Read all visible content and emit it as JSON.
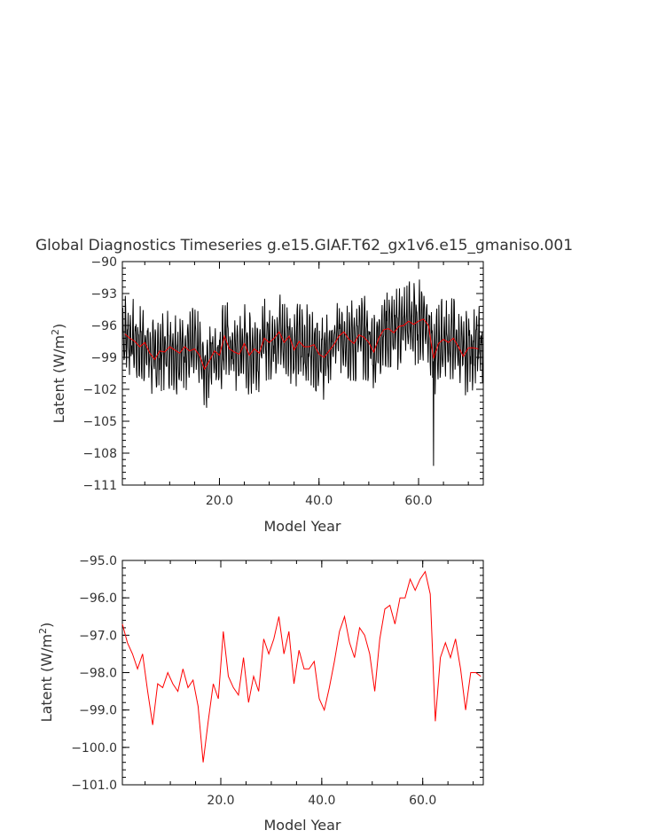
{
  "title": "Global Diagnostics Timeseries g.e15.GIAF.T62_gx1v6.e15_gmaniso.001",
  "colors": {
    "monthly": "#000000",
    "annual": "#ff0000",
    "text": "#333333"
  },
  "chart_data": [
    {
      "type": "line",
      "xlabel": "Model Year",
      "ylabel_main": "Latent (W/m",
      "ylabel_sup": "2",
      "ylabel_close": ")",
      "xlim": [
        0.5,
        73
      ],
      "ylim": [
        -111,
        -90
      ],
      "xticks": [
        20,
        40,
        60
      ],
      "xtick_labels": [
        "20.0",
        "40.0",
        "60.0"
      ],
      "yticks": [
        -111,
        -108,
        -105,
        -102,
        -99,
        -96,
        -93,
        -90
      ],
      "ytick_labels": [
        "−111",
        "−108",
        "−105",
        "−102",
        "−99",
        "−96",
        "−93",
        "−90"
      ],
      "series": [
        {
          "color": "#000000",
          "kind": "monthly",
          "start": 0.5,
          "step": 0.0833333,
          "min_point": {
            "x": 63.0,
            "y": -109.2
          }
        },
        {
          "color": "#ff0000",
          "kind": "annual",
          "x": [
            1,
            2,
            3,
            4,
            5,
            6,
            7,
            8,
            9,
            10,
            11,
            12,
            13,
            14,
            15,
            16,
            17,
            18,
            19,
            20,
            21,
            22,
            23,
            24,
            25,
            26,
            27,
            28,
            29,
            30,
            31,
            32,
            33,
            34,
            35,
            36,
            37,
            38,
            39,
            40,
            41,
            42,
            43,
            44,
            45,
            46,
            47,
            48,
            49,
            50,
            51,
            52,
            53,
            54,
            55,
            56,
            57,
            58,
            59,
            60,
            61,
            62,
            63,
            64,
            65,
            66,
            67,
            68,
            69,
            70,
            71,
            72
          ],
          "y": [
            -96.8,
            -97.2,
            -97.5,
            -98.0,
            -97.6,
            -98.6,
            -99.2,
            -98.4,
            -98.5,
            -98.0,
            -98.3,
            -98.6,
            -98.0,
            -98.4,
            -98.2,
            -98.8,
            -100.1,
            -99.3,
            -98.4,
            -98.8,
            -97.0,
            -98.2,
            -98.5,
            -98.7,
            -97.7,
            -98.8,
            -98.2,
            -98.6,
            -97.2,
            -97.6,
            -97.2,
            -96.6,
            -97.6,
            -97.0,
            -98.3,
            -97.5,
            -98.0,
            -98.0,
            -97.8,
            -98.7,
            -99.0,
            -98.4,
            -97.8,
            -97.0,
            -96.6,
            -97.3,
            -97.7,
            -96.9,
            -97.1,
            -97.6,
            -98.5,
            -97.2,
            -96.4,
            -96.3,
            -96.7,
            -96.1,
            -96.0,
            -95.6,
            -95.9,
            -95.6,
            -95.4,
            -96.0,
            -99.1,
            -97.7,
            -97.3,
            -97.6,
            -97.2,
            -98.0,
            -98.9,
            -98.1,
            -98.1,
            -98.2
          ]
        }
      ]
    },
    {
      "type": "line",
      "xlabel": "Model Year",
      "ylabel_main": "Latent (W/m",
      "ylabel_sup": "2",
      "ylabel_close": ")",
      "xlim": [
        0.5,
        72
      ],
      "ylim": [
        -101,
        -95
      ],
      "xticks": [
        20,
        40,
        60
      ],
      "xtick_labels": [
        "20.0",
        "40.0",
        "60.0"
      ],
      "yticks": [
        -101,
        -100,
        -99,
        -98,
        -97,
        -96,
        -95
      ],
      "ytick_labels": [
        "−101.0",
        "−100.0",
        "−99.0",
        "−98.0",
        "−97.0",
        "−96.0",
        "−95.0"
      ],
      "series": [
        {
          "color": "#ff0000",
          "kind": "annual",
          "x": [
            0.5,
            1.5,
            2.5,
            3.5,
            4.5,
            5.5,
            6.5,
            7.5,
            8.5,
            9.5,
            10.5,
            11.5,
            12.5,
            13.5,
            14.5,
            15.5,
            16.5,
            17.5,
            18.5,
            19.5,
            20.5,
            21.5,
            22.5,
            23.5,
            24.5,
            25.5,
            26.5,
            27.5,
            28.5,
            29.5,
            30.5,
            31.5,
            32.5,
            33.5,
            34.5,
            35.5,
            36.5,
            37.5,
            38.5,
            39.5,
            40.5,
            41.5,
            42.5,
            43.5,
            44.5,
            45.5,
            46.5,
            47.5,
            48.5,
            49.5,
            50.5,
            51.5,
            52.5,
            53.5,
            54.5,
            55.5,
            56.5,
            57.5,
            58.5,
            59.5,
            60.5,
            61.5,
            62.5,
            63.5,
            64.5,
            65.5,
            66.5,
            67.5,
            68.5,
            69.5,
            70.5,
            71.5
          ],
          "y": [
            -96.7,
            -97.2,
            -97.5,
            -97.9,
            -97.5,
            -98.5,
            -99.4,
            -98.3,
            -98.4,
            -98.0,
            -98.3,
            -98.5,
            -97.9,
            -98.4,
            -98.2,
            -98.9,
            -100.4,
            -99.3,
            -98.3,
            -98.7,
            -96.9,
            -98.1,
            -98.4,
            -98.6,
            -97.6,
            -98.8,
            -98.1,
            -98.5,
            -97.1,
            -97.5,
            -97.1,
            -96.5,
            -97.5,
            -96.9,
            -98.3,
            -97.4,
            -97.9,
            -97.9,
            -97.7,
            -98.7,
            -99.0,
            -98.4,
            -97.7,
            -96.9,
            -96.5,
            -97.2,
            -97.6,
            -96.8,
            -97.0,
            -97.5,
            -98.5,
            -97.1,
            -96.3,
            -96.2,
            -96.7,
            -96.0,
            -96.0,
            -95.5,
            -95.8,
            -95.5,
            -95.3,
            -95.9,
            -99.3,
            -97.6,
            -97.2,
            -97.6,
            -97.1,
            -97.9,
            -99.0,
            -98.0,
            -98.0,
            -98.1
          ]
        }
      ]
    }
  ]
}
